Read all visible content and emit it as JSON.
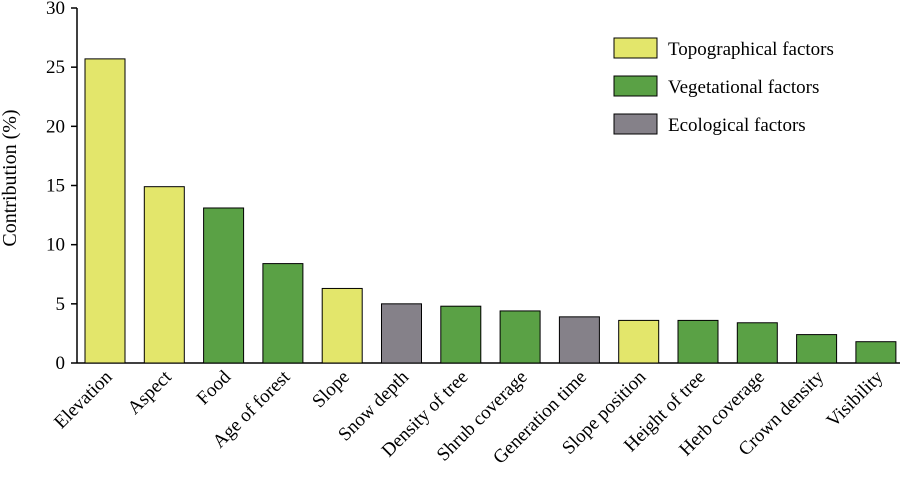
{
  "chart_data": {
    "type": "bar",
    "ylabel": "Contribution (%)",
    "ylim": [
      0,
      30
    ],
    "yticks": [
      0,
      5,
      10,
      15,
      20,
      25,
      30
    ],
    "categories": [
      "Elevation",
      "Aspect",
      "Food",
      "Age of forest",
      "Slope",
      "Snow depth",
      "Density of tree",
      "Shrub coverage",
      "Generation time",
      "Slope position",
      "Height of tree",
      "Herb coverage",
      "Crown density",
      "Visibility"
    ],
    "values": [
      25.7,
      14.9,
      13.1,
      8.4,
      6.3,
      5.0,
      4.8,
      4.4,
      3.9,
      3.6,
      3.6,
      3.4,
      2.4,
      1.8
    ],
    "groups": [
      "Topographical factors",
      "Topographical factors",
      "Vegetational factors",
      "Vegetational factors",
      "Topographical factors",
      "Ecological factors",
      "Vegetational factors",
      "Vegetational factors",
      "Ecological factors",
      "Topographical factors",
      "Vegetational factors",
      "Vegetational factors",
      "Vegetational factors",
      "Vegetational factors"
    ],
    "legend": {
      "position": "top-right",
      "entries": [
        {
          "name": "Topographical factors",
          "color": "#e3e66b"
        },
        {
          "name": "Vegetational factors",
          "color": "#5aa145"
        },
        {
          "name": "Ecological factors",
          "color": "#858189"
        }
      ]
    },
    "grid": false
  }
}
